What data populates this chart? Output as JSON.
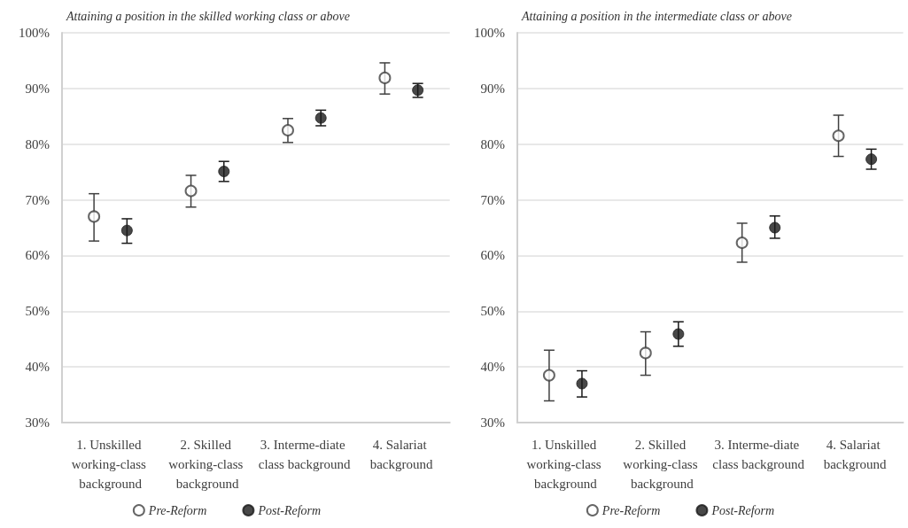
{
  "chart_data": [
    {
      "type": "scatter",
      "subtitle": "Attaining a position in the skilled working class or above",
      "categories": [
        "1. Unskilled working-class background",
        "2. Skilled working-class background",
        "3. Interme-diate class background",
        "4. Salariat background"
      ],
      "series": [
        {
          "name": "Pre-Reform",
          "color": "#404040",
          "values": [
            67.0,
            71.6,
            82.5,
            91.9
          ],
          "errors": [
            [
              62.6,
              71.1
            ],
            [
              68.7,
              74.4
            ],
            [
              80.3,
              84.6
            ],
            [
              89.0,
              94.6
            ]
          ]
        },
        {
          "name": "Post-Reform",
          "color": "#1a1a1a",
          "values": [
            64.5,
            75.1,
            84.7,
            89.7
          ],
          "errors": [
            [
              62.2,
              66.6
            ],
            [
              73.3,
              76.9
            ],
            [
              83.3,
              86.1
            ],
            [
              88.4,
              90.9
            ]
          ]
        }
      ],
      "ylim": [
        30,
        100
      ],
      "yticks": [
        {
          "value": 30,
          "label": "30%"
        },
        {
          "value": 40,
          "label": "40%"
        },
        {
          "value": 50,
          "label": "50%"
        },
        {
          "value": 60,
          "label": "60%"
        },
        {
          "value": 70,
          "label": "70%"
        },
        {
          "value": 80,
          "label": "80%"
        },
        {
          "value": 90,
          "label": "90%"
        },
        {
          "value": 100,
          "label": "100%"
        }
      ],
      "grid": "y",
      "legend": "bottom",
      "marker": "circle"
    },
    {
      "type": "scatter",
      "subtitle": "Attaining a position in the intermediate class or above",
      "categories": [
        "1. Unskilled working-class background",
        "2. Skilled working-class background",
        "3. Interme-diate class background",
        "4. Salariat background"
      ],
      "series": [
        {
          "name": "Pre-Reform",
          "color": "#404040",
          "values": [
            38.5,
            42.5,
            62.3,
            81.5
          ],
          "errors": [
            [
              33.9,
              43.0
            ],
            [
              38.5,
              46.3
            ],
            [
              58.8,
              65.8
            ],
            [
              77.8,
              85.2
            ]
          ]
        },
        {
          "name": "Post-Reform",
          "color": "#1a1a1a",
          "values": [
            37.0,
            45.9,
            65.0,
            77.3
          ],
          "errors": [
            [
              34.6,
              39.3
            ],
            [
              43.7,
              48.1
            ],
            [
              63.1,
              67.1
            ],
            [
              75.5,
              79.1
            ]
          ]
        }
      ],
      "ylim": [
        30,
        100
      ],
      "yticks": [
        {
          "value": 30,
          "label": "30%"
        },
        {
          "value": 40,
          "label": "40%"
        },
        {
          "value": 50,
          "label": "50%"
        },
        {
          "value": 60,
          "label": "60%"
        },
        {
          "value": 70,
          "label": "70%"
        },
        {
          "value": 80,
          "label": "80%"
        },
        {
          "value": 90,
          "label": "90%"
        },
        {
          "value": 100,
          "label": "100%"
        }
      ],
      "grid": "y",
      "legend": "bottom",
      "marker": "circle"
    }
  ]
}
